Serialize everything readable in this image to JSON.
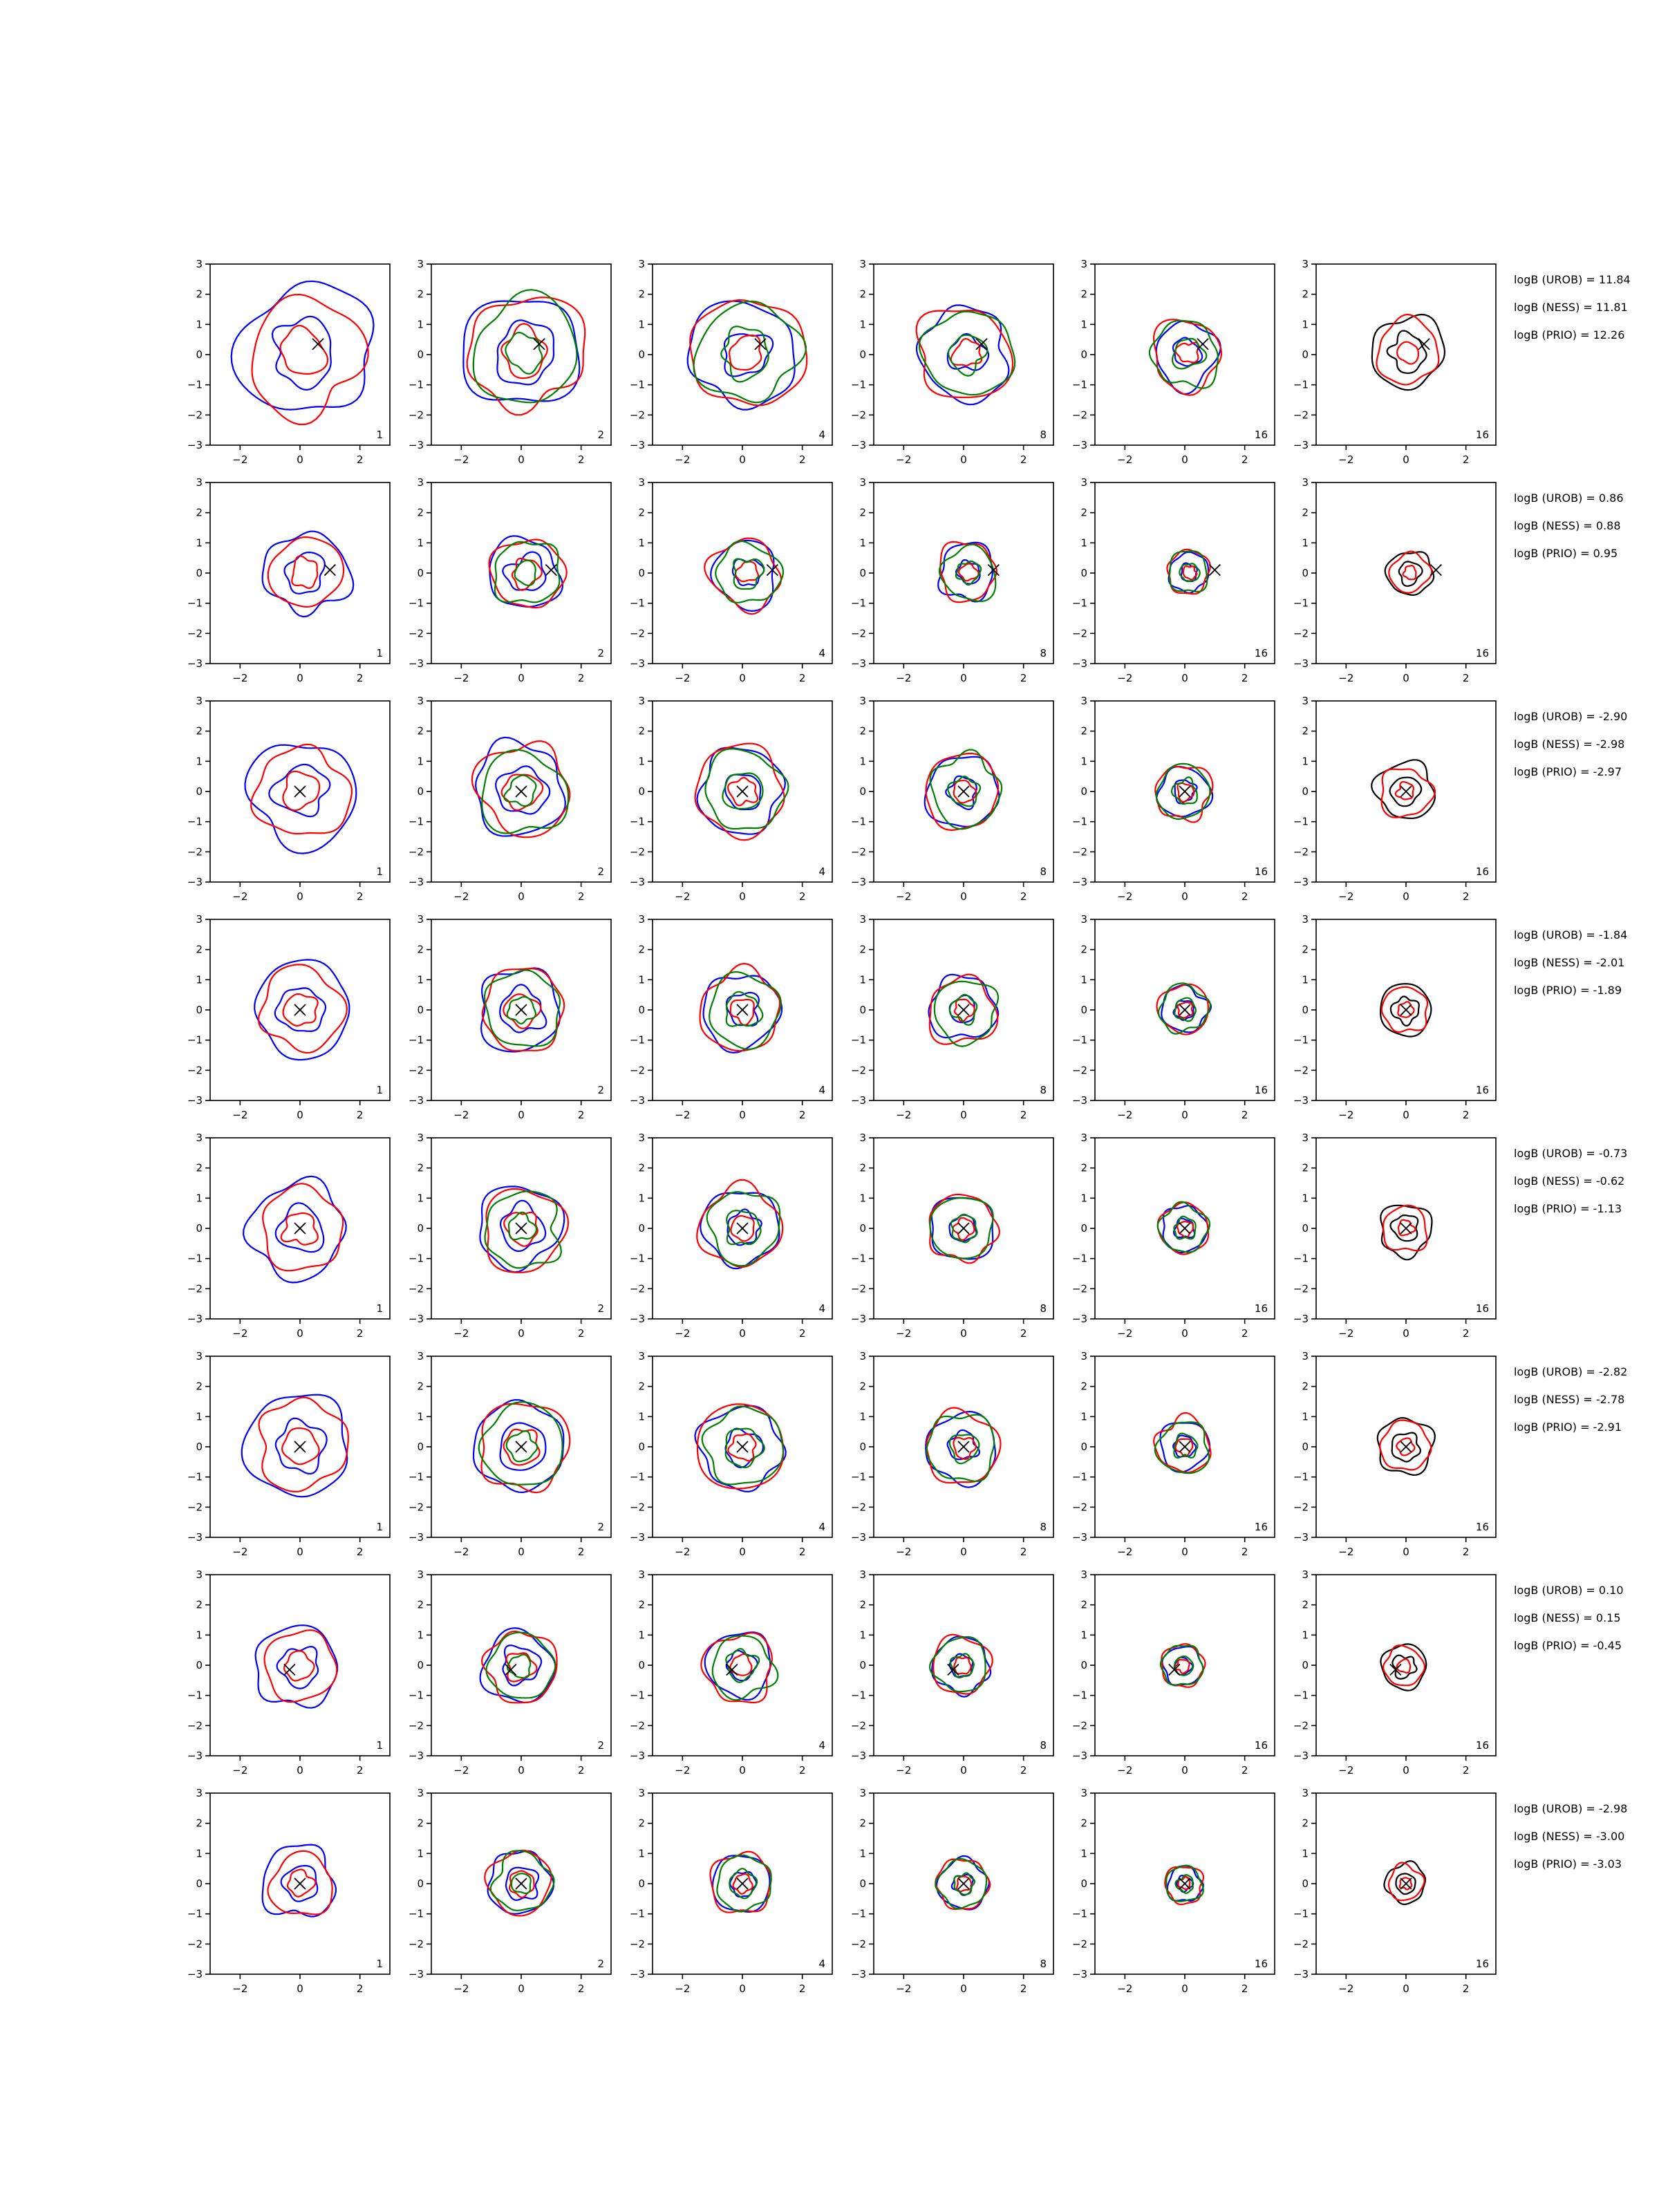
{
  "chart_data": {
    "type": "contour-grid",
    "rows": 8,
    "cols": 6,
    "xlim": [
      -3,
      3
    ],
    "ylim": [
      -3,
      3
    ],
    "xticks": [
      -2,
      0,
      2
    ],
    "yticks": [
      -3,
      -2,
      -1,
      0,
      1,
      2,
      3
    ],
    "xtick_labels": [
      "−2",
      "0",
      "2"
    ],
    "ytick_labels": [
      "−3",
      "−2",
      "−1",
      "0",
      "1",
      "2",
      "3"
    ],
    "panel_labels": [
      "1",
      "2",
      "4",
      "8",
      "16",
      "16"
    ],
    "colors": {
      "blue": "#0000ff",
      "red": "#ff0000",
      "green": "#008000",
      "black": "#000000"
    },
    "marker": "x-marker",
    "true_points": [
      {
        "x": 0.6,
        "y": 0.35
      },
      {
        "x": 1.0,
        "y": 0.1
      },
      {
        "x": 0.0,
        "y": 0.0
      },
      {
        "x": 0.0,
        "y": 0.0
      },
      {
        "x": 0.0,
        "y": 0.0
      },
      {
        "x": 0.0,
        "y": 0.0
      },
      {
        "x": -0.35,
        "y": -0.15
      },
      {
        "x": 0.0,
        "y": 0.0
      }
    ],
    "row_spread": [
      1.0,
      0.62,
      0.8,
      0.72,
      0.72,
      0.78,
      0.62,
      0.55
    ],
    "contour_levels": [
      [
        {
          "color": "blue",
          "r": [
            1.05,
            2.2
          ]
        },
        {
          "color": "red",
          "r": [
            0.75,
            1.9
          ]
        }
      ],
      [
        {
          "color": "blue",
          "r": [
            1.0,
            1.9
          ]
        },
        {
          "color": "red",
          "r": [
            0.75,
            1.9
          ]
        },
        {
          "color": "green",
          "r": [
            0.6,
            1.75
          ]
        }
      ],
      [
        {
          "color": "blue",
          "r": [
            0.75,
            1.75
          ]
        },
        {
          "color": "red",
          "r": [
            0.55,
            1.85
          ]
        },
        {
          "color": "green",
          "r": [
            0.8,
            1.65
          ]
        }
      ],
      [
        {
          "color": "blue",
          "r": [
            0.6,
            1.5
          ]
        },
        {
          "color": "red",
          "r": [
            0.45,
            1.55
          ]
        },
        {
          "color": "green",
          "r": [
            0.6,
            1.45
          ]
        }
      ],
      [
        {
          "color": "blue",
          "r": [
            0.45,
            1.05
          ]
        },
        {
          "color": "red",
          "r": [
            0.35,
            1.15
          ]
        },
        {
          "color": "green",
          "r": [
            0.5,
            1.1
          ]
        }
      ],
      [
        {
          "color": "black",
          "r": [
            0.6,
            1.2
          ]
        },
        {
          "color": "red",
          "r": [
            0.35,
            1.05
          ]
        }
      ]
    ],
    "logb_labels": [
      [
        "logB (UROB) = 11.84",
        "logB (NESS) = 11.81",
        "logB (PRIO) = 12.26"
      ],
      [
        "logB (UROB) = 0.86",
        "logB (NESS) = 0.88",
        "logB (PRIO) = 0.95"
      ],
      [
        "logB (UROB) = -2.90",
        "logB (NESS) = -2.98",
        "logB (PRIO) = -2.97"
      ],
      [
        "logB (UROB) = -1.84",
        "logB (NESS) = -2.01",
        "logB (PRIO) = -1.89"
      ],
      [
        "logB (UROB) = -0.73",
        "logB (NESS) = -0.62",
        "logB (PRIO) = -1.13"
      ],
      [
        "logB (UROB) = -2.82",
        "logB (NESS) = -2.78",
        "logB (PRIO) = -2.91"
      ],
      [
        "logB (UROB) = 0.10",
        "logB (NESS) = 0.15",
        "logB (PRIO) = -0.45"
      ],
      [
        "logB (UROB) = -2.98",
        "logB (NESS) = -3.00",
        "logB (PRIO) = -3.03"
      ]
    ]
  }
}
